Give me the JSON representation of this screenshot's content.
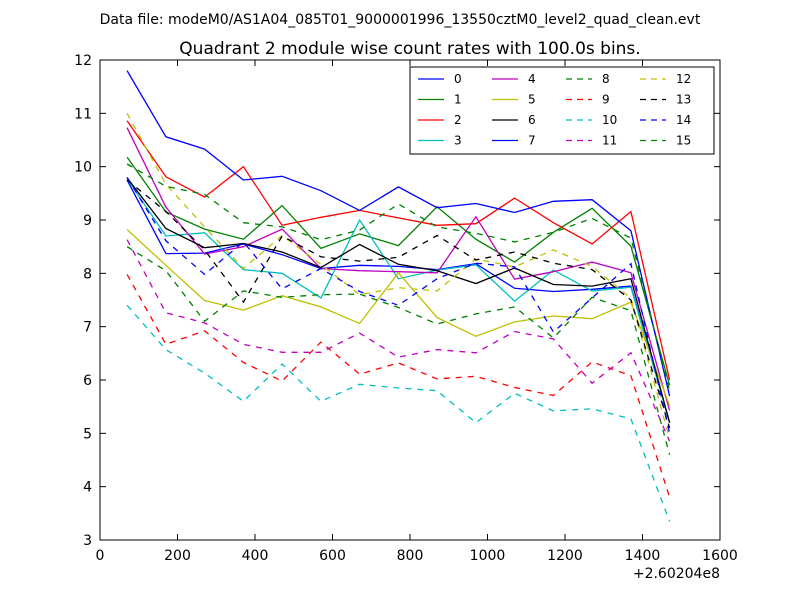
{
  "chart_data": {
    "type": "line",
    "suptitle": "Data file: modeM0/AS1A04_085T01_9000001996_13550cztM0_level2_quad_clean.evt",
    "title": "Quadrant 2 module wise count rates with 100.0s bins.",
    "xlabel": "",
    "ylabel": "",
    "x_offset_label": "+2.60204e8",
    "xlim": [
      0,
      1600
    ],
    "ylim": [
      3,
      12
    ],
    "x_ticks": [
      "0",
      "200",
      "400",
      "600",
      "800",
      "1000",
      "1200",
      "1400",
      "1600"
    ],
    "y_ticks": [
      "3",
      "4",
      "5",
      "6",
      "7",
      "8",
      "9",
      "10",
      "11",
      "12"
    ],
    "x": [
      70,
      170,
      270,
      370,
      470,
      570,
      670,
      770,
      870,
      970,
      1070,
      1170,
      1270,
      1370,
      1470
    ],
    "series": [
      {
        "name": "0",
        "color": "#0000ff",
        "dash": "solid",
        "values": [
          9.75,
          8.37,
          8.38,
          8.55,
          8.35,
          8.09,
          8.15,
          8.13,
          8.07,
          8.18,
          7.72,
          7.66,
          7.7,
          7.76,
          5.2
        ]
      },
      {
        "name": "1",
        "color": "#008000",
        "dash": "solid",
        "values": [
          10.18,
          9.15,
          8.83,
          8.64,
          9.27,
          8.47,
          8.74,
          8.52,
          9.25,
          8.64,
          8.21,
          8.77,
          9.22,
          8.51,
          5.9
        ]
      },
      {
        "name": "2",
        "color": "#ff0000",
        "dash": "solid",
        "values": [
          10.86,
          9.81,
          9.43,
          10.0,
          8.9,
          9.05,
          9.18,
          9.04,
          8.9,
          8.93,
          9.41,
          8.95,
          8.55,
          9.16,
          6.0
        ]
      },
      {
        "name": "3",
        "color": "#00bfbf",
        "dash": "solid",
        "values": [
          9.77,
          8.7,
          8.76,
          8.07,
          8.0,
          7.54,
          9.0,
          7.9,
          8.06,
          8.16,
          7.48,
          8.06,
          7.67,
          7.74,
          5.2
        ]
      },
      {
        "name": "4",
        "color": "#bf00bf",
        "dash": "solid",
        "values": [
          10.73,
          9.24,
          8.36,
          8.5,
          8.83,
          8.09,
          8.05,
          8.03,
          8.01,
          9.06,
          7.89,
          8.03,
          8.21,
          8.01,
          5.43
        ]
      },
      {
        "name": "5",
        "color": "#bfbf00",
        "dash": "solid",
        "values": [
          8.82,
          8.15,
          7.49,
          7.31,
          7.58,
          7.37,
          7.06,
          8.01,
          7.17,
          6.82,
          7.09,
          7.2,
          7.15,
          7.46,
          5.52
        ]
      },
      {
        "name": "6",
        "color": "#000000",
        "dash": "solid",
        "values": [
          9.79,
          8.84,
          8.48,
          8.56,
          8.4,
          8.11,
          8.54,
          8.17,
          8.05,
          7.81,
          8.1,
          7.79,
          7.76,
          7.9,
          5.2
        ]
      },
      {
        "name": "7",
        "color": "#0000ff",
        "dash": "solid",
        "values": [
          11.8,
          10.56,
          10.33,
          9.75,
          9.82,
          9.55,
          9.18,
          9.62,
          9.23,
          9.31,
          9.14,
          9.35,
          9.38,
          8.8,
          5.7
        ]
      },
      {
        "name": "8",
        "color": "#008000",
        "dash": "dashed",
        "values": [
          8.5,
          8.05,
          7.1,
          7.67,
          7.55,
          7.6,
          7.61,
          7.36,
          7.05,
          7.24,
          7.37,
          6.79,
          7.55,
          7.3,
          4.6
        ]
      },
      {
        "name": "9",
        "color": "#ff0000",
        "dash": "dashed",
        "values": [
          7.98,
          6.67,
          6.92,
          6.33,
          5.98,
          6.71,
          6.11,
          6.32,
          6.02,
          6.07,
          5.86,
          5.71,
          6.34,
          6.08,
          3.8
        ]
      },
      {
        "name": "10",
        "color": "#00bfbf",
        "dash": "dashed",
        "values": [
          7.4,
          6.57,
          6.13,
          5.6,
          6.3,
          5.6,
          5.92,
          5.85,
          5.8,
          5.2,
          5.75,
          5.42,
          5.46,
          5.27,
          3.35
        ]
      },
      {
        "name": "11",
        "color": "#bf00bf",
        "dash": "dashed",
        "values": [
          8.63,
          7.26,
          7.07,
          6.67,
          6.52,
          6.52,
          6.88,
          6.43,
          6.57,
          6.51,
          6.91,
          6.77,
          5.94,
          6.51,
          4.85
        ]
      },
      {
        "name": "12",
        "color": "#bfbf00",
        "dash": "dashed",
        "values": [
          11.0,
          9.67,
          8.87,
          8.09,
          8.71,
          8.17,
          7.6,
          7.73,
          7.67,
          8.27,
          8.12,
          8.44,
          8.13,
          7.53,
          4.9
        ]
      },
      {
        "name": "13",
        "color": "#000000",
        "dash": "dashed",
        "values": [
          9.75,
          9.16,
          8.44,
          7.46,
          8.7,
          8.31,
          8.23,
          8.3,
          8.71,
          8.25,
          8.4,
          8.19,
          8.07,
          7.5,
          5.1
        ]
      },
      {
        "name": "14",
        "color": "#0000ff",
        "dash": "dashed",
        "values": [
          9.8,
          8.61,
          7.98,
          8.59,
          7.71,
          8.09,
          7.66,
          7.4,
          7.9,
          8.19,
          8.12,
          6.9,
          7.54,
          8.18,
          5.0
        ]
      },
      {
        "name": "15",
        "color": "#008000",
        "dash": "dashed",
        "values": [
          10.05,
          9.63,
          9.48,
          8.95,
          8.87,
          8.63,
          8.81,
          9.3,
          8.87,
          8.75,
          8.59,
          8.77,
          9.03,
          8.66,
          5.8
        ]
      }
    ],
    "legend_location": "top-right",
    "legend_columns": 4,
    "grid": false
  }
}
